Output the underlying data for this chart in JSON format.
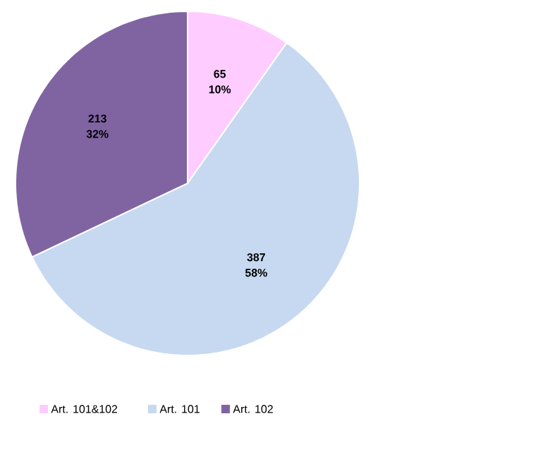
{
  "chart_data": {
    "type": "pie",
    "categories": [
      "Art. 101&102",
      "Art. 101",
      "Art. 102"
    ],
    "values": [
      65,
      387,
      213
    ],
    "colors": [
      "#ffccff",
      "#c6d9f0",
      "#8064a2"
    ],
    "data_labels": true,
    "annotations": [
      "10%",
      "58%",
      "32%"
    ],
    "legend": "bottom"
  }
}
